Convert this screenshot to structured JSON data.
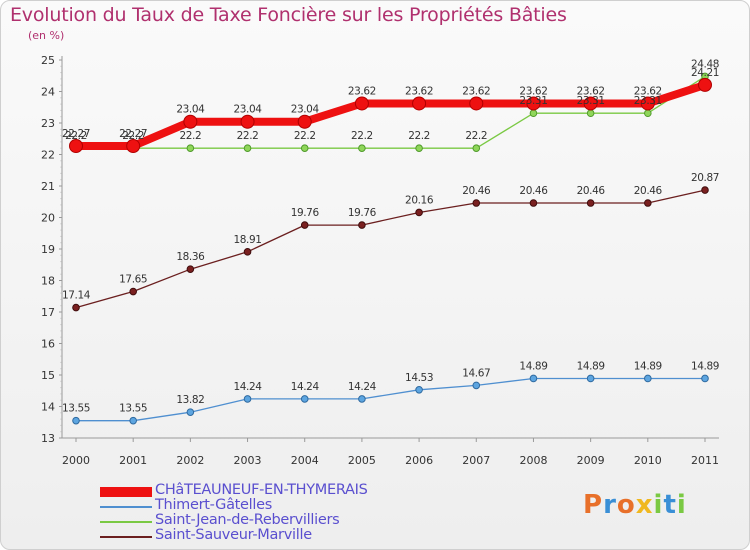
{
  "chart_data": {
    "type": "line",
    "title": "Evolution du Taux de Taxe Foncière sur les Propriétés Bâties",
    "subtitle": "(en %)",
    "x": [
      "2000",
      "2001",
      "2002",
      "2003",
      "2004",
      "2005",
      "2006",
      "2007",
      "2008",
      "2009",
      "2010",
      "2011"
    ],
    "ylim": [
      13,
      25
    ],
    "yticks": [
      13,
      14,
      15,
      16,
      17,
      18,
      19,
      20,
      21,
      22,
      23,
      24,
      25
    ],
    "grid": false,
    "legend_position": "bottom-left",
    "series": [
      {
        "name": "CHâTEAUNEUF-EN-THYMERAIS",
        "color": "#ee1111",
        "values": [
          22.27,
          22.27,
          23.04,
          23.04,
          23.04,
          23.62,
          23.62,
          23.62,
          23.62,
          23.62,
          23.62,
          24.21
        ],
        "labels": [
          "22.27",
          "22.27",
          "23.04",
          "23.04",
          "23.04",
          "23.62",
          "23.62",
          "23.62",
          "23.62",
          "23.62",
          "23.62",
          "24.21"
        ]
      },
      {
        "name": "Thimert-Gâtelles",
        "color": "#4f8fd0",
        "values": [
          13.55,
          13.55,
          13.82,
          14.24,
          14.24,
          14.24,
          14.53,
          14.67,
          14.89,
          14.89,
          14.89,
          14.89
        ],
        "labels": [
          "13.55",
          "13.55",
          "13.82",
          "14.24",
          "14.24",
          "14.24",
          "14.53",
          "14.67",
          "14.89",
          "14.89",
          "14.89",
          "14.89"
        ]
      },
      {
        "name": "Saint-Jean-de-Rebervilliers",
        "color": "#7ac943",
        "values": [
          22.2,
          22.2,
          22.2,
          22.2,
          22.2,
          22.2,
          22.2,
          22.2,
          23.31,
          23.31,
          23.31,
          24.48
        ],
        "labels": [
          "22.2",
          "22.2",
          "22.2",
          "22.2",
          "22.2",
          "22.2",
          "22.2",
          "22.2",
          "23.31",
          "23.31",
          "23.31",
          "24.48"
        ]
      },
      {
        "name": "Saint-Sauveur-Marville",
        "color": "#6b1f1f",
        "values": [
          17.14,
          17.65,
          18.36,
          18.91,
          19.76,
          19.76,
          20.16,
          20.46,
          20.46,
          20.46,
          20.46,
          20.87
        ],
        "labels": [
          "17.14",
          "17.65",
          "18.36",
          "18.91",
          "19.76",
          "19.76",
          "20.16",
          "20.46",
          "20.46",
          "20.46",
          "20.46",
          "20.87"
        ]
      }
    ]
  },
  "legend": [
    {
      "label": "CHâTEAUNEUF-EN-THYMERAIS",
      "color": "#ee1111"
    },
    {
      "label": "Thimert-Gâtelles",
      "color": "#4f8fd0"
    },
    {
      "label": "Saint-Jean-de-Rebervilliers",
      "color": "#7ac943"
    },
    {
      "label": "Saint-Sauveur-Marville",
      "color": "#6b1f1f"
    }
  ],
  "logo": {
    "text": "Proxiti"
  }
}
